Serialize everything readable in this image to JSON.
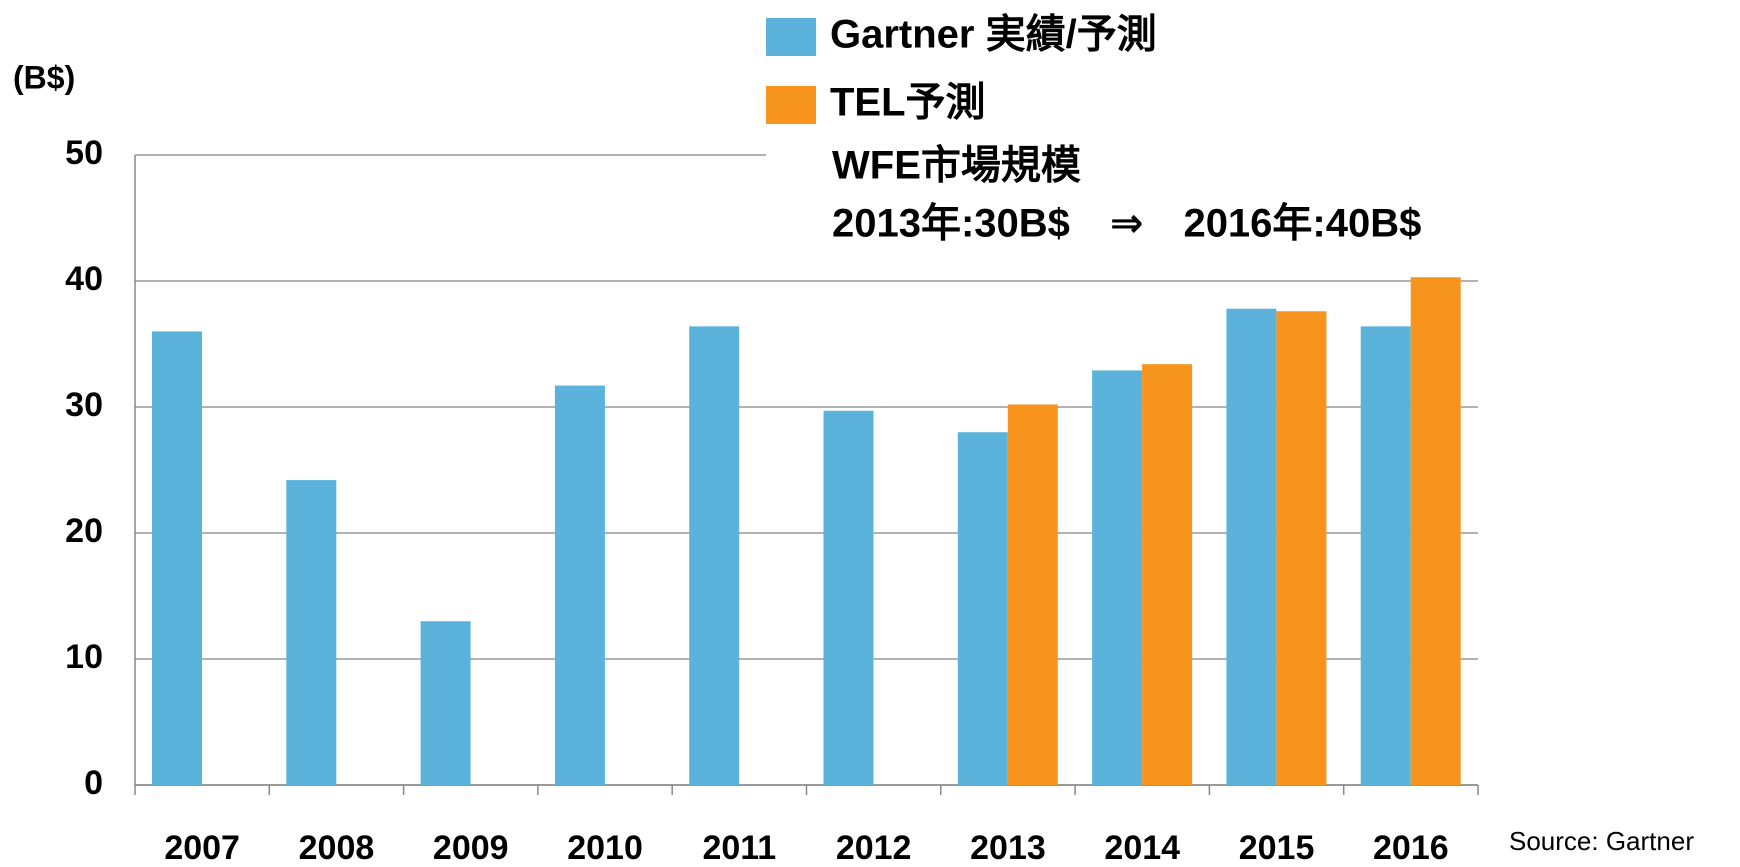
{
  "chart_data": {
    "type": "bar",
    "y_label": "(B$)",
    "categories": [
      "2007",
      "2008",
      "2009",
      "2010",
      "2011",
      "2012",
      "2013",
      "2014",
      "2015",
      "2016"
    ],
    "series": [
      {
        "name": "Gartner 実績/予測",
        "color": "#5bb3dc",
        "values": [
          36,
          24.2,
          13,
          31.7,
          36.4,
          29.7,
          28,
          32.9,
          37.8,
          36.4
        ]
      },
      {
        "name": "TEL予測",
        "color": "#f7941d",
        "values": [
          null,
          null,
          null,
          null,
          null,
          null,
          30.2,
          33.4,
          37.6,
          40.3
        ]
      }
    ],
    "annotations": [
      "WFE市場規模",
      "2013年:30B$　⇒　2016年:40B$"
    ],
    "source": "Source: Gartner",
    "ylim": [
      0,
      50
    ],
    "yticks": [
      0,
      10,
      20,
      30,
      40,
      50
    ],
    "grid": true
  }
}
